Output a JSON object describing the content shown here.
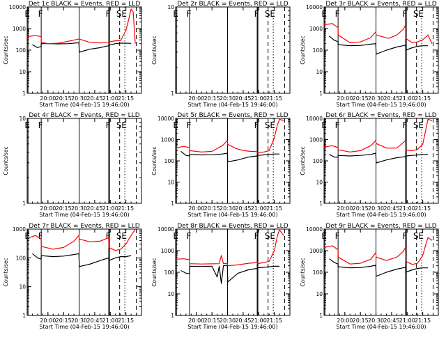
{
  "chart_data": {
    "type": "line",
    "xlabel": "Start Time (04-Feb-15 19:46:00)",
    "ylabel": "Counts/sec",
    "x_tick_labels": [
      "20:00",
      "20:15",
      "20:30",
      "20:45",
      "21:00",
      "21:15"
    ],
    "x_ticks_min": [
      20,
      35,
      50,
      65,
      80,
      95
    ],
    "xlim_min": [
      0,
      110
    ],
    "vertical_markers": [
      {
        "label": "E",
        "x_min": 0.8,
        "style": "solid"
      },
      {
        "label": "F",
        "x_min": 13.5,
        "style": "solid"
      },
      {
        "label": "",
        "x_min": 50,
        "style": "solid"
      },
      {
        "label": "F",
        "x_min": 78.5,
        "style": "solid"
      },
      {
        "label": "",
        "x_min": 79.2,
        "style": "solid"
      },
      {
        "label": "S",
        "x_min": 89,
        "style": "dashed"
      },
      {
        "label": "E",
        "x_min": 94,
        "style": "dotted"
      },
      {
        "label": "",
        "x_min": 105,
        "style": "dashed"
      }
    ],
    "series_legend": "BLACK = Events, RED = LLD",
    "panels": [
      {
        "title": "Det 1c BLACK = Events, RED = LLD",
        "ylim": [
          1,
          10000
        ],
        "ytick_labels": [
          "1",
          "10",
          "100",
          "1000",
          "10000"
        ],
        "has_data": true,
        "red": [
          [
            0,
            420
          ],
          [
            8,
            480
          ],
          [
            13.4,
            420
          ],
          [
            13.6,
            230
          ],
          [
            20,
            200
          ],
          [
            30,
            210
          ],
          [
            40,
            260
          ],
          [
            50,
            330
          ],
          [
            60,
            230
          ],
          [
            70,
            215
          ],
          [
            78.4,
            230
          ],
          [
            78.6,
            240
          ],
          [
            85,
            270
          ],
          [
            90,
            280
          ],
          [
            95,
            800
          ],
          [
            98,
            3000
          ],
          [
            100,
            8000
          ],
          [
            102,
            6000
          ],
          [
            104,
            200
          ]
        ],
        "black": [
          [
            5,
            180
          ],
          [
            10,
            130
          ],
          [
            13.4,
            150
          ],
          [
            13.6,
            200
          ],
          [
            20,
            200
          ],
          [
            30,
            195
          ],
          [
            40,
            200
          ],
          [
            49.8,
            220
          ],
          [
            50.2,
            80
          ],
          [
            60,
            110
          ],
          [
            70,
            130
          ],
          [
            78.4,
            160
          ],
          [
            78.6,
            170
          ],
          [
            85,
            200
          ],
          [
            90,
            210
          ],
          [
            95,
            210
          ],
          [
            100,
            205
          ]
        ]
      },
      {
        "title": "Det 2r BLACK = Events, RED = LLD",
        "ylim": [
          1,
          10
        ],
        "ytick_labels": [
          "1",
          "10"
        ],
        "has_data": false,
        "red": [],
        "black": []
      },
      {
        "title": "Det 3r BLACK = Events, RED = LLD",
        "ylim": [
          1,
          10000
        ],
        "ytick_labels": [
          "1",
          "10",
          "100",
          "1000",
          "10000"
        ],
        "has_data": true,
        "red": [
          [
            0,
            1500
          ],
          [
            8,
            1700
          ],
          [
            13.4,
            1100
          ],
          [
            13.6,
            500
          ],
          [
            25,
            220
          ],
          [
            35,
            240
          ],
          [
            45,
            380
          ],
          [
            49.8,
            700
          ],
          [
            50.2,
            500
          ],
          [
            62,
            350
          ],
          [
            70,
            500
          ],
          [
            76,
            900
          ],
          [
            78.4,
            1400
          ],
          [
            78.6,
            350
          ],
          [
            85,
            220
          ],
          [
            90,
            240
          ],
          [
            95,
            300
          ],
          [
            100,
            500
          ],
          [
            104,
            200
          ]
        ],
        "black": [
          [
            5,
            450
          ],
          [
            10,
            280
          ],
          [
            13.4,
            250
          ],
          [
            13.6,
            180
          ],
          [
            25,
            160
          ],
          [
            35,
            165
          ],
          [
            45,
            190
          ],
          [
            49.8,
            200
          ],
          [
            50.2,
            65
          ],
          [
            60,
            100
          ],
          [
            70,
            140
          ],
          [
            76,
            160
          ],
          [
            78.4,
            170
          ],
          [
            78.6,
            100
          ],
          [
            85,
            130
          ],
          [
            90,
            150
          ],
          [
            95,
            160
          ],
          [
            100,
            160
          ]
        ]
      },
      {
        "title": "Det 4r BLACK = Events, RED = LLD",
        "ylim": [
          1,
          10
        ],
        "ytick_labels": [
          "1",
          "10"
        ],
        "has_data": false,
        "red": [],
        "black": []
      },
      {
        "title": "Det 5r BLACK = Events, RED = LLD",
        "ylim": [
          1,
          10000
        ],
        "ytick_labels": [
          "1",
          "10",
          "100",
          "1000",
          "10000"
        ],
        "has_data": true,
        "red": [
          [
            0,
            400
          ],
          [
            8,
            480
          ],
          [
            13.4,
            420
          ],
          [
            13.6,
            300
          ],
          [
            25,
            260
          ],
          [
            35,
            280
          ],
          [
            45,
            520
          ],
          [
            49.8,
            900
          ],
          [
            50.2,
            600
          ],
          [
            58,
            380
          ],
          [
            66,
            300
          ],
          [
            72,
            280
          ],
          [
            78.4,
            270
          ],
          [
            78.6,
            250
          ],
          [
            85,
            260
          ],
          [
            90,
            300
          ],
          [
            95,
            1200
          ],
          [
            98,
            5000
          ],
          [
            100,
            9000
          ],
          [
            104,
            8000
          ]
        ],
        "black": [
          [
            5,
            280
          ],
          [
            10,
            180
          ],
          [
            13.4,
            170
          ],
          [
            13.6,
            200
          ],
          [
            25,
            190
          ],
          [
            35,
            195
          ],
          [
            45,
            210
          ],
          [
            49.8,
            230
          ],
          [
            50.2,
            90
          ],
          [
            60,
            110
          ],
          [
            70,
            150
          ],
          [
            78.4,
            170
          ],
          [
            78.6,
            180
          ],
          [
            85,
            190
          ],
          [
            90,
            200
          ],
          [
            95,
            210
          ],
          [
            100,
            210
          ]
        ]
      },
      {
        "title": "Det 6r BLACK = Events, RED = LLD",
        "ylim": [
          1,
          10000
        ],
        "ytick_labels": [
          "1",
          "10",
          "100",
          "1000",
          "10000"
        ],
        "has_data": true,
        "red": [
          [
            0,
            450
          ],
          [
            8,
            520
          ],
          [
            13.4,
            420
          ],
          [
            13.6,
            330
          ],
          [
            25,
            260
          ],
          [
            35,
            300
          ],
          [
            45,
            520
          ],
          [
            49.8,
            900
          ],
          [
            50.2,
            650
          ],
          [
            60,
            400
          ],
          [
            70,
            400
          ],
          [
            76,
            700
          ],
          [
            78.4,
            900
          ],
          [
            78.6,
            320
          ],
          [
            85,
            300
          ],
          [
            90,
            350
          ],
          [
            95,
            600
          ],
          [
            98,
            3000
          ],
          [
            100,
            9000
          ],
          [
            104,
            8000
          ]
        ],
        "black": [
          [
            5,
            200
          ],
          [
            10,
            150
          ],
          [
            13.4,
            150
          ],
          [
            13.6,
            180
          ],
          [
            25,
            170
          ],
          [
            35,
            180
          ],
          [
            45,
            200
          ],
          [
            49.8,
            230
          ],
          [
            50.2,
            80
          ],
          [
            60,
            110
          ],
          [
            70,
            140
          ],
          [
            78.4,
            160
          ],
          [
            78.6,
            170
          ],
          [
            85,
            180
          ],
          [
            90,
            190
          ],
          [
            95,
            200
          ],
          [
            100,
            200
          ]
        ]
      },
      {
        "title": "Det 7r BLACK = Events, RED = LLD",
        "ylim": [
          1,
          1000
        ],
        "ytick_labels": [
          "1",
          "10",
          "100",
          "1000"
        ],
        "has_data": true,
        "red": [
          [
            0,
            480
          ],
          [
            8,
            600
          ],
          [
            13.4,
            450
          ],
          [
            13.6,
            250
          ],
          [
            25,
            200
          ],
          [
            35,
            230
          ],
          [
            45,
            380
          ],
          [
            49.8,
            600
          ],
          [
            50.2,
            450
          ],
          [
            60,
            360
          ],
          [
            70,
            380
          ],
          [
            78.4,
            500
          ],
          [
            78.6,
            230
          ],
          [
            85,
            180
          ],
          [
            90,
            200
          ],
          [
            95,
            300
          ],
          [
            100,
            600
          ],
          [
            104,
            1000
          ]
        ],
        "black": [
          [
            5,
            140
          ],
          [
            10,
            100
          ],
          [
            13.4,
            90
          ],
          [
            13.6,
            120
          ],
          [
            25,
            110
          ],
          [
            35,
            115
          ],
          [
            45,
            130
          ],
          [
            49.8,
            140
          ],
          [
            50.2,
            50
          ],
          [
            60,
            60
          ],
          [
            70,
            80
          ],
          [
            78.4,
            100
          ],
          [
            78.6,
            80
          ],
          [
            85,
            100
          ],
          [
            90,
            110
          ],
          [
            95,
            110
          ],
          [
            100,
            120
          ]
        ]
      },
      {
        "title": "Det 8r BLACK = Events, RED = LLD",
        "ylim": [
          1,
          10000
        ],
        "ytick_labels": [
          "1",
          "10",
          "100",
          "1000",
          "10000"
        ],
        "has_data": true,
        "red": [
          [
            0,
            400
          ],
          [
            8,
            420
          ],
          [
            13.4,
            380
          ],
          [
            13.6,
            250
          ],
          [
            25,
            240
          ],
          [
            35,
            245
          ],
          [
            42,
            250
          ],
          [
            44,
            600
          ],
          [
            46,
            250
          ],
          [
            49.8,
            260
          ],
          [
            50.2,
            200
          ],
          [
            60,
            220
          ],
          [
            70,
            260
          ],
          [
            78.4,
            280
          ],
          [
            78.6,
            250
          ],
          [
            85,
            280
          ],
          [
            90,
            320
          ],
          [
            95,
            1000
          ],
          [
            98,
            5000
          ],
          [
            100,
            9000
          ],
          [
            104,
            5000
          ]
        ],
        "black": [
          [
            5,
            120
          ],
          [
            10,
            90
          ],
          [
            13.4,
            85
          ],
          [
            13.6,
            190
          ],
          [
            25,
            185
          ],
          [
            35,
            190
          ],
          [
            40,
            60
          ],
          [
            42,
            190
          ],
          [
            44,
            30
          ],
          [
            46,
            200
          ],
          [
            49.8,
            210
          ],
          [
            50.2,
            35
          ],
          [
            60,
            90
          ],
          [
            70,
            130
          ],
          [
            78.4,
            150
          ],
          [
            78.6,
            160
          ],
          [
            85,
            170
          ],
          [
            90,
            180
          ],
          [
            95,
            190
          ],
          [
            100,
            190
          ]
        ]
      },
      {
        "title": "Det 9r BLACK = Events, RED = LLD",
        "ylim": [
          1,
          10000
        ],
        "ytick_labels": [
          "1",
          "10",
          "100",
          "1000",
          "10000"
        ],
        "has_data": true,
        "red": [
          [
            0,
            1400
          ],
          [
            8,
            1700
          ],
          [
            13.4,
            1100
          ],
          [
            13.6,
            500
          ],
          [
            25,
            240
          ],
          [
            35,
            260
          ],
          [
            45,
            400
          ],
          [
            49.8,
            800
          ],
          [
            50.2,
            500
          ],
          [
            60,
            350
          ],
          [
            70,
            500
          ],
          [
            76,
            900
          ],
          [
            78.4,
            1400
          ],
          [
            78.6,
            320
          ],
          [
            85,
            230
          ],
          [
            90,
            260
          ],
          [
            95,
            600
          ],
          [
            98,
            2000
          ],
          [
            100,
            4000
          ],
          [
            104,
            3000
          ]
        ],
        "black": [
          [
            5,
            420
          ],
          [
            10,
            280
          ],
          [
            13.4,
            240
          ],
          [
            13.6,
            180
          ],
          [
            25,
            160
          ],
          [
            35,
            165
          ],
          [
            45,
            190
          ],
          [
            49.8,
            210
          ],
          [
            50.2,
            65
          ],
          [
            60,
            100
          ],
          [
            70,
            140
          ],
          [
            76,
            160
          ],
          [
            78.4,
            170
          ],
          [
            78.6,
            100
          ],
          [
            85,
            130
          ],
          [
            90,
            150
          ],
          [
            95,
            160
          ],
          [
            100,
            160
          ]
        ]
      }
    ]
  },
  "colors": {
    "events": "#000000",
    "lld": "#ff0000",
    "axes": "#000000",
    "background": "#ffffff"
  }
}
